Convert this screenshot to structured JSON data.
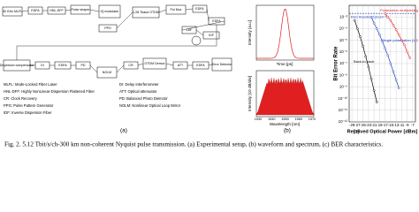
{
  "panel_a": {
    "label": "(a)",
    "blocks": [
      "40 GHz MLFL",
      "EDFA",
      "HNL-DFF",
      "Pulse shaper",
      "IQ modulator",
      "PPG",
      "1.28 Tbaud OTDM",
      "Pol Mux",
      "EDFA",
      "EDFA",
      "ZDF",
      "IDF",
      "Dispersion compensator",
      "DI",
      "EDFA",
      "PD",
      "NOLM",
      "CR",
      "OTDM Demux",
      "ATT",
      "EDFA",
      "Error Detector"
    ],
    "legend": [
      "MLFL: Mode-Locked Fiber Laser",
      "HNL-DFF: Highly NonLinear-Dispersion Flattened Fiber",
      "CR: Clock Recovery",
      "PPG: Pulse Pattern Generator",
      "IDF: Inverse Dispersion Fiber",
      "DI: Delay Interferometer",
      "ATT: Optical attenuator",
      "PD: Balanced Photo Detector",
      "NOLM: Nonlinear Optical Loop Mirror"
    ]
  },
  "panel_b": {
    "label": "(b)",
    "top_ylabel": "Intensity [a.u.]",
    "top_xlabel": "Time [ps]",
    "bottom_ylabel": "Intensity [10 dB/div]",
    "bottom_xlabel": "Wavelength [nm]",
    "bottom_xticks": [
      "1530",
      "1540",
      "1550",
      "1560",
      "1570"
    ]
  },
  "chart_data": {
    "type": "line",
    "label": "(c)",
    "ylabel": "Bit Error Rate",
    "xlabel": "Received Optical Power [dBm]",
    "log_y": true,
    "grid": true,
    "xlim": [
      -30,
      -6
    ],
    "xticks": [
      -29,
      -27,
      -25,
      -23,
      -21,
      -19,
      -17,
      -15,
      -13,
      -11,
      -9,
      -7
    ],
    "ylim": [
      1e-12,
      0.01
    ],
    "yticks": [
      {
        "value": 0.001,
        "label": "10⁻³"
      },
      {
        "value": 0.0001,
        "label": "10⁻⁴"
      },
      {
        "value": 1e-05,
        "label": "10⁻⁵"
      },
      {
        "value": 1e-06,
        "label": "10⁻⁶"
      },
      {
        "value": 1e-07,
        "label": "10⁻⁷"
      },
      {
        "value": 1e-08,
        "label": "10⁻⁸"
      },
      {
        "value": 1e-09,
        "label": "10⁻⁹"
      },
      {
        "value": 1e-10,
        "label": "10⁻¹⁰"
      },
      {
        "value": 1e-11,
        "label": "10⁻¹¹"
      },
      {
        "value": 1e-12,
        "label": "10⁻¹²"
      }
    ],
    "threshold": {
      "value": 0.002,
      "label": "FEC threshold (2x10⁻³)",
      "color": "#1f3fbf"
    },
    "series": [
      {
        "name": "Polarization multiplexing (2.6 Tbit/s)",
        "color": "#e02020",
        "x": [
          -17,
          -16,
          -15,
          -14,
          -13,
          -12,
          -11,
          -10,
          -9,
          -8
        ],
        "values": [
          0.002,
          0.001,
          0.0005,
          0.0002,
          8e-05,
          3e-05,
          1e-05,
          4e-06,
          1e-06,
          3e-07
        ]
      },
      {
        "name": "Single polarization (1.3 Tbit/s)",
        "color": "#1f3fbf",
        "x": [
          -22,
          -21,
          -20,
          -19,
          -18,
          -17,
          -16,
          -15,
          -14,
          -13,
          -12
        ],
        "values": [
          0.001,
          0.0003,
          0.0001,
          3e-05,
          8e-06,
          2e-06,
          5e-07,
          1e-07,
          2e-08,
          4e-09,
          8e-10
        ]
      },
      {
        "name": "Back-to-back",
        "color": "#000000",
        "x": [
          -28,
          -27,
          -26,
          -25,
          -24,
          -23,
          -22,
          -21,
          -20
        ],
        "values": [
          0.0005,
          0.0001,
          2e-05,
          3e-06,
          4e-07,
          5e-08,
          5e-09,
          5e-10,
          5e-11
        ]
      }
    ]
  },
  "caption": "Fig. 2. 5.12 Tbit/s/ch-300 km non-coherent Nyquist pulse transmission. (a) Experimental setup, (b) waveform and spectrum, (c) BER characteristics."
}
